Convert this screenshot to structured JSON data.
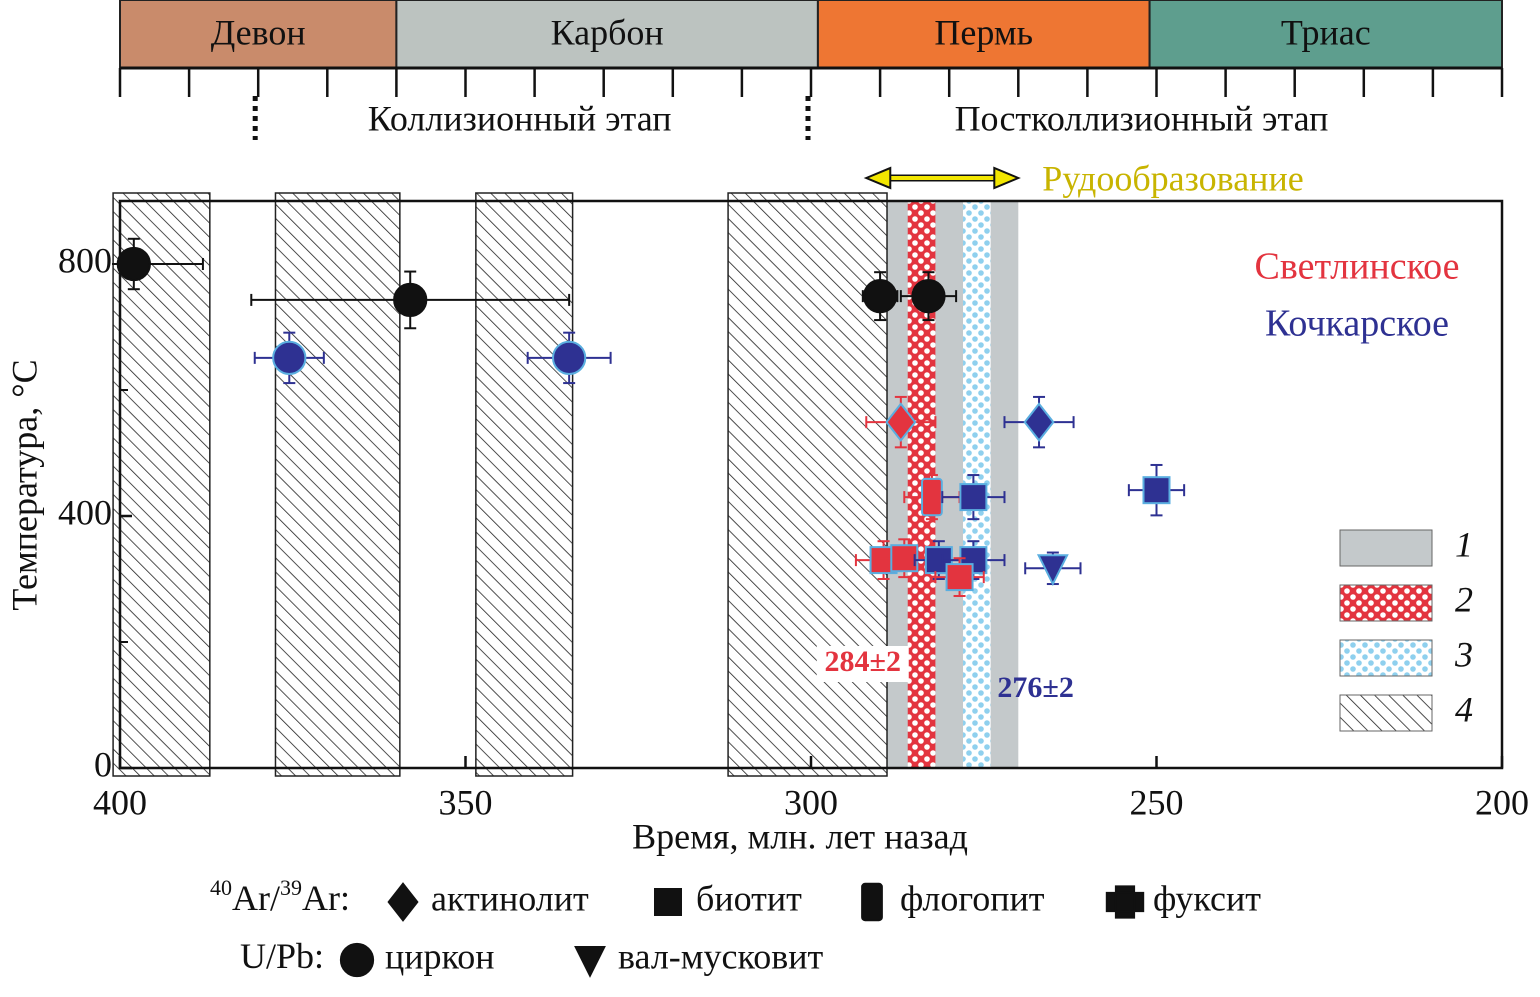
{
  "time_scale": {
    "periods": [
      {
        "name": "Девон",
        "start": 400,
        "end": 360,
        "color": "#c98b6b"
      },
      {
        "name": "Карбон",
        "start": 360,
        "end": 299,
        "color": "#bcc3c0"
      },
      {
        "name": "Пермь",
        "start": 299,
        "end": 251,
        "color": "#ee7633"
      },
      {
        "name": "Триас",
        "start": 251,
        "end": 200,
        "color": "#5e9e8e"
      }
    ],
    "ticks": [
      400,
      390,
      380,
      370,
      360,
      350,
      340,
      330,
      320,
      310,
      300,
      290,
      280,
      270,
      260,
      250,
      240,
      230,
      220,
      210,
      200
    ]
  },
  "stages": [
    {
      "label": "Коллизионный этап",
      "boundary": 380,
      "end": 300
    },
    {
      "label": "Постколлизионный этап",
      "boundary": 300,
      "end": 200
    }
  ],
  "chart_data": {
    "type": "scatter",
    "x_label": "Время, млн. лет назад",
    "y_label": "Температура, °C",
    "xlim": [
      400,
      200
    ],
    "ylim": [
      0,
      900
    ],
    "xticks": [
      400,
      350,
      300,
      250,
      200
    ],
    "yticks": [
      0,
      400,
      800
    ],
    "yminor": [
      200,
      600
    ],
    "ore": {
      "label": "Рудообразование",
      "range": [
        292,
        270
      ],
      "color": "#f2e600",
      "label_color": "#c8b400"
    },
    "deposits": [
      {
        "name": "Светлинское",
        "color": "#e3343f"
      },
      {
        "name": "Кочкарское",
        "color": "#2e3192"
      }
    ],
    "bands": [
      {
        "key": "1",
        "style": "gray",
        "ranges": [
          [
            292,
            270
          ]
        ]
      },
      {
        "key": "2",
        "style": "red-dots",
        "ranges": [
          [
            286,
            282
          ]
        ],
        "label": "284±2",
        "label_color": "#e3343f"
      },
      {
        "key": "3",
        "style": "blue-dots",
        "ranges": [
          [
            278,
            274
          ]
        ],
        "label": "276±2",
        "label_color": "#2e3192"
      },
      {
        "key": "4",
        "style": "hatch",
        "ranges": [
          [
            401,
            387
          ],
          [
            377.5,
            359.5
          ],
          [
            348.5,
            334.5
          ],
          [
            312,
            289
          ]
        ]
      }
    ],
    "points": [
      {
        "x": 398,
        "y": 800,
        "xerr": 10,
        "yerr": 40,
        "marker": "circle",
        "color": "#111111"
      },
      {
        "x": 358,
        "y": 743,
        "xerr": 23,
        "yerr": 45,
        "marker": "circle",
        "color": "#111111"
      },
      {
        "x": 290,
        "y": 749,
        "xerr": 2.5,
        "yerr": 38,
        "marker": "circle",
        "color": "#111111"
      },
      {
        "x": 283,
        "y": 749,
        "xerr": 4,
        "yerr": 38,
        "marker": "circle",
        "color": "#111111"
      },
      {
        "x": 375.5,
        "y": 651,
        "xerr": 5,
        "yerr": 40,
        "marker": "circle",
        "color": "#2e3192"
      },
      {
        "x": 335,
        "y": 651,
        "xerr": 6,
        "yerr": 40,
        "marker": "circle",
        "color": "#2e3192"
      },
      {
        "x": 287,
        "y": 549,
        "xerr": 5,
        "yerr": 40,
        "marker": "diamond",
        "color": "#e3343f"
      },
      {
        "x": 267,
        "y": 549,
        "xerr": 5,
        "yerr": 40,
        "marker": "diamond",
        "color": "#2e3192"
      },
      {
        "x": 282.5,
        "y": 430,
        "xerr": 4,
        "yerr": 35,
        "marker": "tall",
        "color": "#e3343f"
      },
      {
        "x": 276.5,
        "y": 430,
        "xerr": 4.5,
        "yerr": 35,
        "marker": "square",
        "color": "#2e3192"
      },
      {
        "x": 250,
        "y": 441,
        "xerr": 4,
        "yerr": 40,
        "marker": "square",
        "color": "#2e3192"
      },
      {
        "x": 289.5,
        "y": 330,
        "xerr": 4,
        "yerr": 30,
        "marker": "square",
        "color": "#e3343f"
      },
      {
        "x": 286.5,
        "y": 333,
        "xerr": 4,
        "yerr": 30,
        "marker": "square",
        "color": "#e3343f"
      },
      {
        "x": 281.5,
        "y": 330,
        "xerr": 3.5,
        "yerr": 30,
        "marker": "square",
        "color": "#2e3192"
      },
      {
        "x": 276.5,
        "y": 330,
        "xerr": 4.5,
        "yerr": 30,
        "marker": "square",
        "color": "#2e3192"
      },
      {
        "x": 278.5,
        "y": 303,
        "xerr": 3.5,
        "yerr": 30,
        "marker": "square",
        "color": "#e3343f"
      },
      {
        "x": 265,
        "y": 317,
        "xerr": 4,
        "yerr": 25,
        "marker": "triangle",
        "color": "#2e3192"
      }
    ],
    "methods": [
      {
        "label_parts": [
          "40",
          "Ar/",
          "39",
          "Ar:"
        ],
        "items": [
          {
            "marker": "diamond",
            "label": "актинолит"
          },
          {
            "marker": "square",
            "label": "биотит"
          },
          {
            "marker": "tall",
            "label": "флогопит"
          },
          {
            "marker": "fuchsite",
            "label": "фуксит"
          }
        ]
      },
      {
        "label_parts": [
          "U/Pb:"
        ],
        "items": [
          {
            "marker": "circle",
            "label": "циркон"
          },
          {
            "marker": "triangle",
            "label": "вал-мусковит"
          }
        ]
      }
    ]
  }
}
